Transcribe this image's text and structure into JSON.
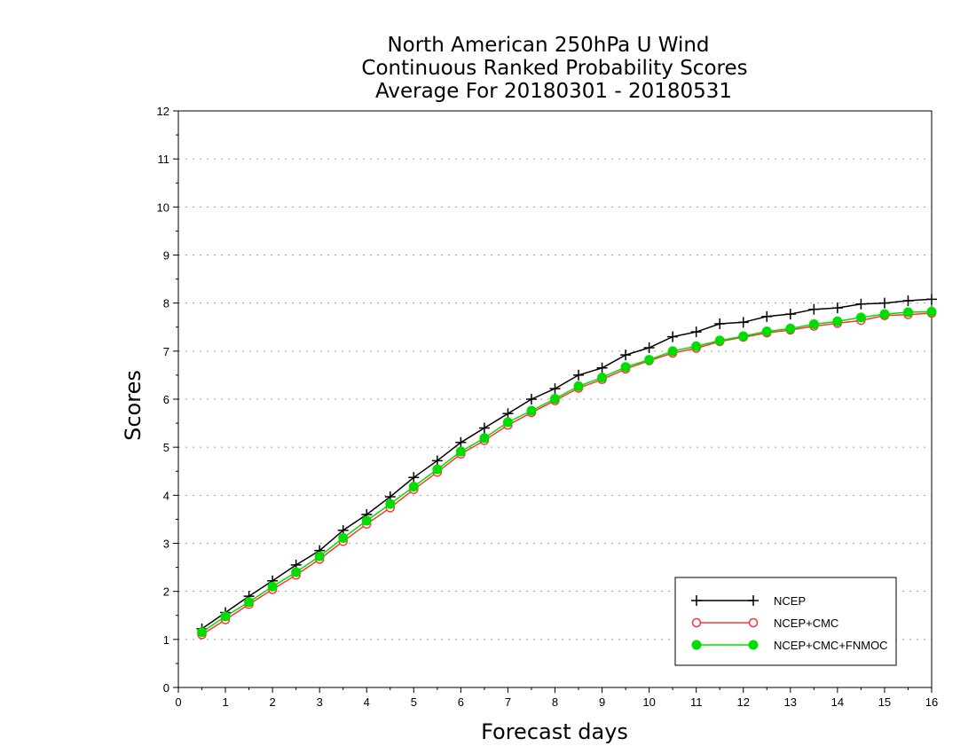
{
  "chart_data": {
    "type": "line",
    "title_lines": [
      "North American 250hPa U Wind",
      "Continuous Ranked Probability Scores",
      "Average For 20180301 - 20180531"
    ],
    "xlabel": "Forecast days",
    "ylabel": "Scores",
    "xlim": [
      0,
      16
    ],
    "ylim": [
      0,
      12
    ],
    "x_ticks": [
      "0",
      "1",
      "2",
      "3",
      "4",
      "5",
      "6",
      "7",
      "8",
      "9",
      "10",
      "11",
      "12",
      "13",
      "14",
      "15",
      "16"
    ],
    "y_ticks": [
      "0",
      "1",
      "2",
      "3",
      "4",
      "5",
      "6",
      "7",
      "8",
      "9",
      "10",
      "11",
      "12"
    ],
    "grid": "horizontal dotted",
    "legend_position": "bottom-right",
    "x": [
      0.5,
      1,
      1.5,
      2,
      2.5,
      3,
      3.5,
      4,
      4.5,
      5,
      5.5,
      6,
      6.5,
      7,
      7.5,
      8,
      8.5,
      9,
      9.5,
      10,
      10.5,
      11,
      11.5,
      12,
      12.5,
      13,
      13.5,
      14,
      14.5,
      15,
      15.5,
      16
    ],
    "series": [
      {
        "name": "NCEP",
        "color": "#000000",
        "marker": "plus",
        "values": [
          1.22,
          1.56,
          1.9,
          2.22,
          2.55,
          2.85,
          3.27,
          3.6,
          3.97,
          4.37,
          4.72,
          5.1,
          5.4,
          5.7,
          6.0,
          6.22,
          6.5,
          6.65,
          6.92,
          7.07,
          7.3,
          7.4,
          7.57,
          7.6,
          7.72,
          7.77,
          7.87,
          7.9,
          7.98,
          8.0,
          8.05,
          8.08
        ]
      },
      {
        "name": "NCEP+CMC",
        "color": "#ff3333",
        "marker": "open-circle",
        "values": [
          1.1,
          1.41,
          1.73,
          2.04,
          2.34,
          2.67,
          3.04,
          3.4,
          3.74,
          4.12,
          4.48,
          4.86,
          5.14,
          5.46,
          5.72,
          5.97,
          6.23,
          6.41,
          6.63,
          6.8,
          6.96,
          7.06,
          7.2,
          7.29,
          7.38,
          7.44,
          7.52,
          7.58,
          7.64,
          7.74,
          7.76,
          7.79
        ]
      },
      {
        "name": "NCEP+CMC+FNMOC",
        "color": "#00dd00",
        "marker": "filled-circle",
        "values": [
          1.15,
          1.48,
          1.78,
          2.1,
          2.4,
          2.73,
          3.11,
          3.47,
          3.82,
          4.18,
          4.54,
          4.91,
          5.19,
          5.52,
          5.76,
          6.01,
          6.27,
          6.45,
          6.67,
          6.82,
          7.0,
          7.1,
          7.22,
          7.31,
          7.41,
          7.47,
          7.56,
          7.62,
          7.7,
          7.77,
          7.81,
          7.82
        ]
      }
    ]
  }
}
